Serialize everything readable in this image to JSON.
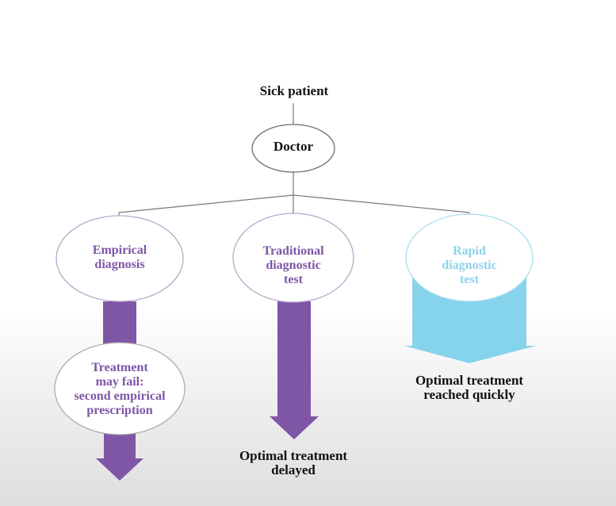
{
  "colors": {
    "purple_arrow": "#7f56a6",
    "purple_text": "#7d55a6",
    "cyan_arrow": "#86d3ec",
    "cyan_text": "#8fd3ea",
    "ellipse_stroke_dark": "#6b6b6b",
    "ellipse_stroke_purple": "#b8a7cc",
    "ellipse_stroke_cyan": "#a8dfee",
    "line": "#777777"
  },
  "diagram": {
    "top_label": "Sick patient",
    "doctor": "Doctor",
    "branches": [
      {
        "label": "Empirical\ndiagnosis",
        "color": "purple"
      },
      {
        "label": "Traditional\ndiagnostic\ntest",
        "color": "purple"
      },
      {
        "label": "Rapid\ndiagnostic\ntest",
        "color": "cyan"
      }
    ],
    "empirical_followup": "Treatment\nmay fail:\nsecond empirical\nprescription",
    "traditional_outcome": "Optimal treatment\ndelayed",
    "rapid_outcome": "Optimal treatment\nreached quickly"
  }
}
